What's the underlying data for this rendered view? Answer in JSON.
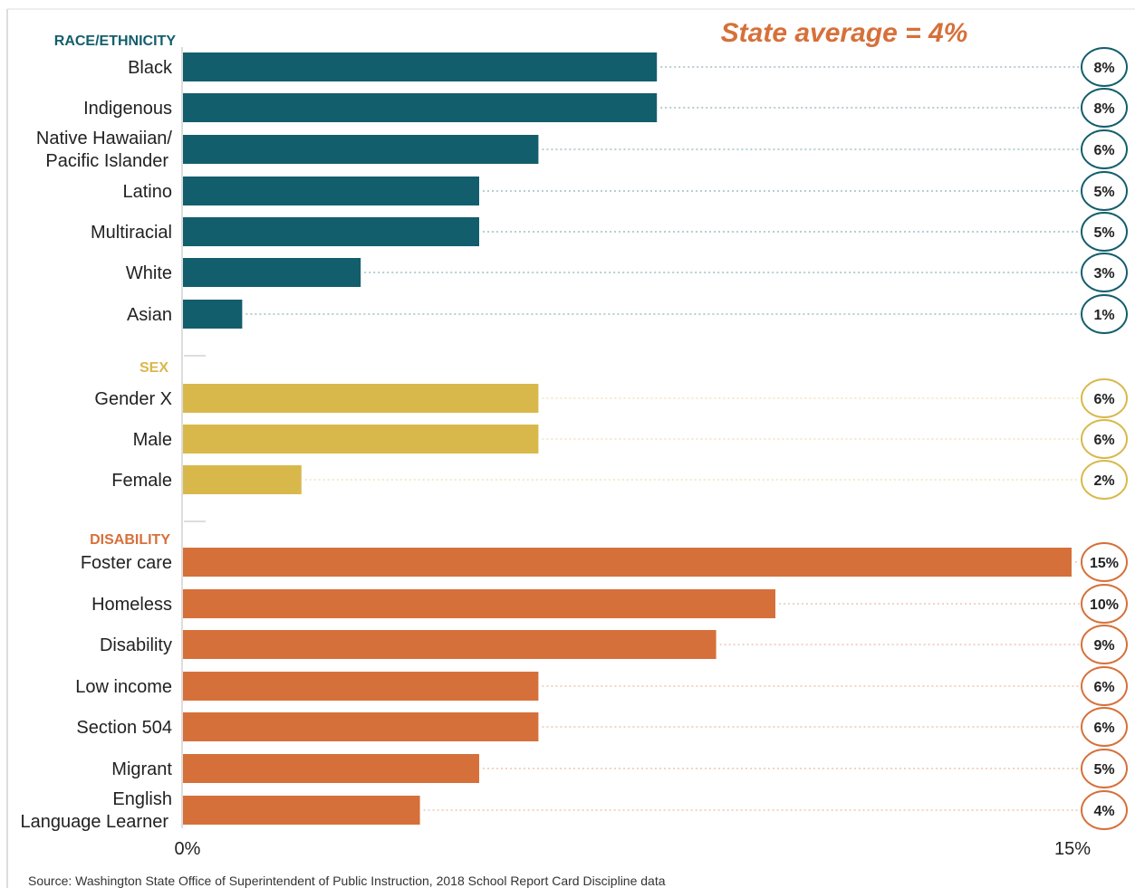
{
  "chart_data": {
    "type": "bar",
    "orientation": "horizontal",
    "title": "",
    "annotation": "State average = 4%",
    "x_ticks": [
      "0%",
      "15%"
    ],
    "xlim": [
      0,
      15
    ],
    "unit": "%",
    "grid": false,
    "source": "Source: Washington State Office of Superintendent of Public Instruction, 2018 School Report Card Discipline data",
    "groups": [
      {
        "name": "RACE/ETHNICITY",
        "color": "#135e6c",
        "categories": [
          "Black",
          "Indigenous",
          "Native Hawaiian/ Pacific Islander",
          "Latino",
          "Multiracial",
          "White",
          "Asian"
        ],
        "values": [
          8,
          8,
          6,
          5,
          5,
          3,
          1
        ],
        "labels": [
          "8%",
          "8%",
          "6%",
          "5%",
          "5%",
          "3%",
          "1%"
        ]
      },
      {
        "name": "SEX",
        "color": "#d9b84b",
        "categories": [
          "Gender X",
          "Male",
          "Female"
        ],
        "values": [
          6,
          6,
          2
        ],
        "labels": [
          "6%",
          "6%",
          "2%"
        ]
      },
      {
        "name": "DISABILITY",
        "color": "#d6703a",
        "categories": [
          "Foster care",
          "Homeless",
          "Disability",
          "Low income",
          "Section 504",
          "Migrant",
          "English Language Learner"
        ],
        "values": [
          15,
          10,
          9,
          6,
          6,
          5,
          4
        ],
        "labels": [
          "15%",
          "10%",
          "9%",
          "6%",
          "6%",
          "5%",
          "4%"
        ]
      }
    ]
  },
  "colors": {
    "race": "#135e6c",
    "sex": "#d9b84b",
    "disability": "#d6703a",
    "annotation": "#d6703a"
  }
}
